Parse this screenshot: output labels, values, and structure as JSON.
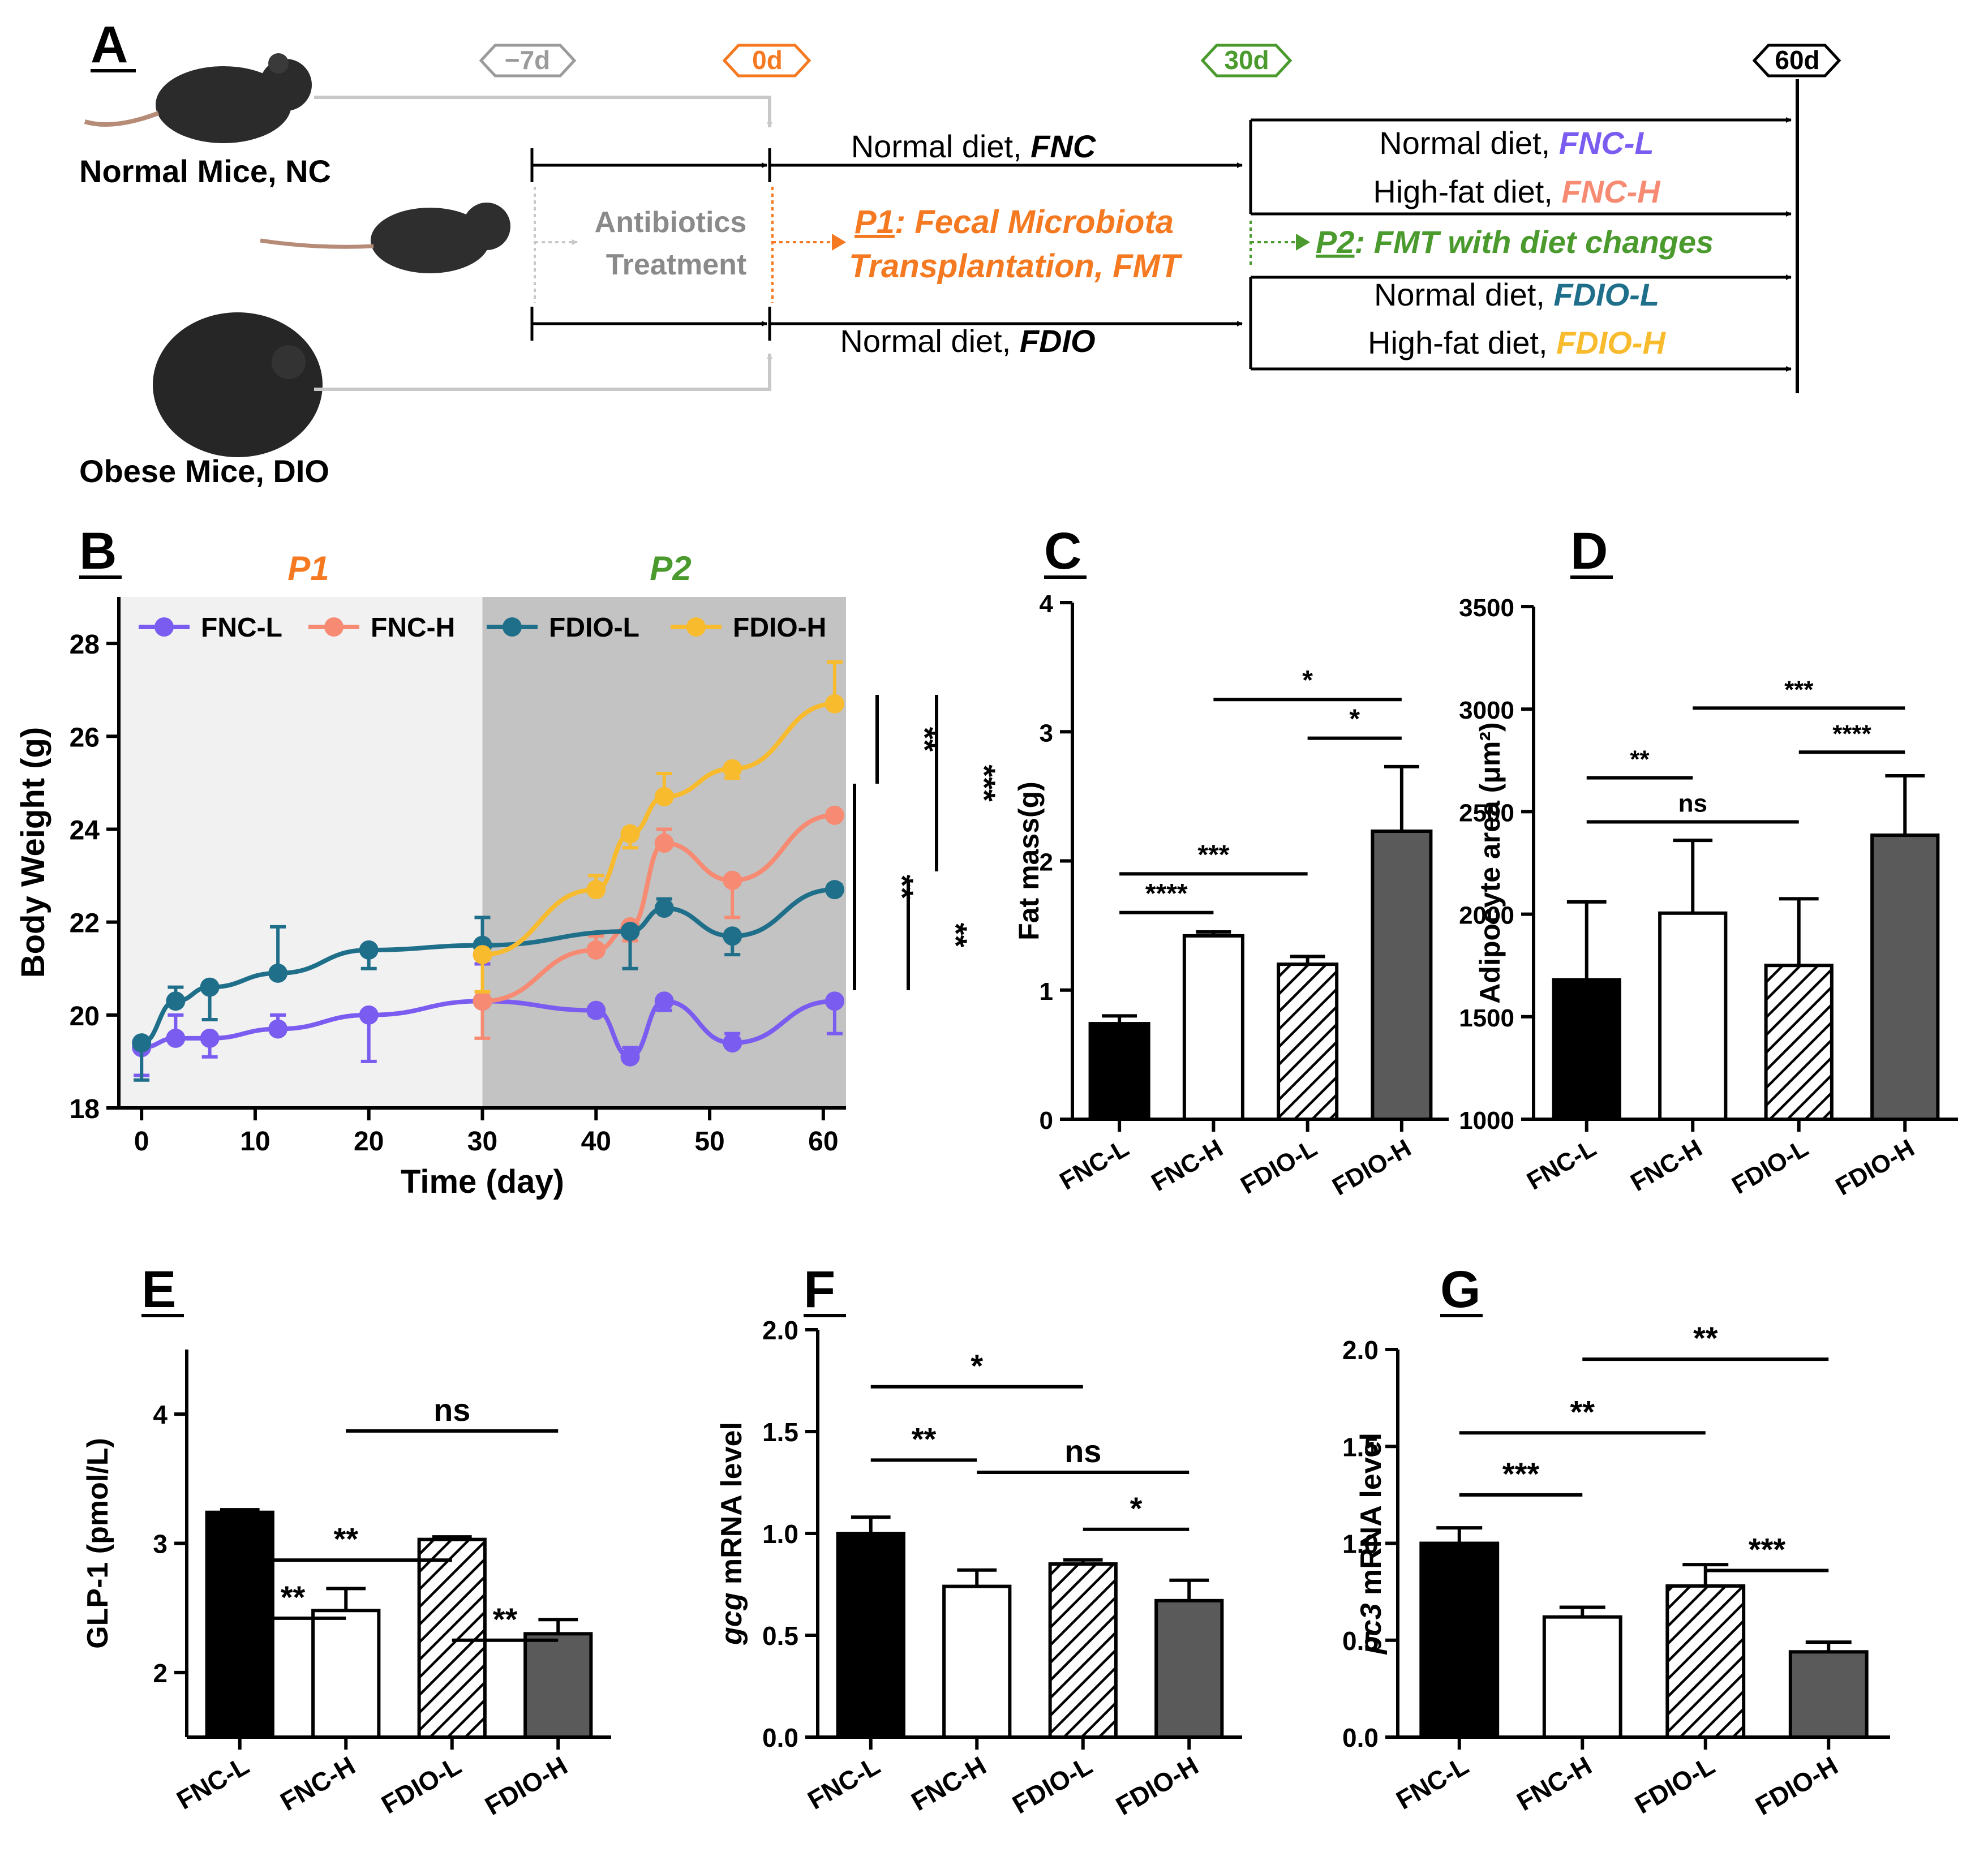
{
  "colors": {
    "fnc_l": "#7b5cf0",
    "fnc_h": "#f78a72",
    "fdio_l": "#1f6f8b",
    "fdio_h": "#f8bb2d",
    "p1": "#f47920",
    "p2": "#4a9a2e",
    "gray": "#9b9b9b",
    "dark_bar": "#5a5a5a"
  },
  "panelA": {
    "letter": "A",
    "normal_mice": "Normal Mice, NC",
    "obese_mice": "Obese Mice, DIO",
    "markers": [
      "−7d",
      "0d",
      "30d",
      "60d"
    ],
    "antibiotics_line1": "Antibiotics",
    "antibiotics_line2": "Treatment",
    "fnc_label": "Normal diet, ",
    "fnc_em": "FNC",
    "fdio_label": "Normal diet, ",
    "fdio_em": "FDIO",
    "p1_tag": "P1",
    "p1_line1": ": Fecal Microbiota",
    "p1_line2": "Transplantation, FMT",
    "p2_tag": "P2",
    "p2_text": ": FMT with diet changes",
    "groups": [
      {
        "label": "Normal diet, ",
        "name": "FNC-L"
      },
      {
        "label": "High-fat diet, ",
        "name": "FNC-H"
      },
      {
        "label": "Normal diet, ",
        "name": "FDIO-L"
      },
      {
        "label": "High-fat diet, ",
        "name": "FDIO-H"
      }
    ]
  },
  "chart_data": [
    {
      "panel": "B",
      "type": "line",
      "xlabel": "Time (day)",
      "ylabel": "Body Weight (g)",
      "xlim": [
        -2,
        62
      ],
      "ylim": [
        18,
        29
      ],
      "xticks": [
        0,
        10,
        20,
        30,
        40,
        50,
        60
      ],
      "yticks": [
        18,
        20,
        22,
        24,
        26,
        28
      ],
      "phase_labels": [
        "P1",
        "P2"
      ],
      "legend": [
        "FNC-L",
        "FNC-H",
        "FDIO-L",
        "FDIO-H"
      ],
      "series": [
        {
          "name": "FNC-L",
          "x": [
            0,
            3,
            6,
            12,
            20,
            30,
            40,
            43,
            46,
            52,
            61
          ],
          "y": [
            19.3,
            19.5,
            19.5,
            19.7,
            20.0,
            20.3,
            20.1,
            19.1,
            20.3,
            19.4,
            20.3
          ],
          "err": [
            0.6,
            0.5,
            0.4,
            0.3,
            1.0,
            0.8,
            0.1,
            0.2,
            0.2,
            0.2,
            0.7
          ]
        },
        {
          "name": "FNC-H",
          "x": [
            30,
            40,
            43,
            46,
            52,
            61
          ],
          "y": [
            20.3,
            21.4,
            21.9,
            23.7,
            22.9,
            24.3
          ],
          "err": [
            0.8,
            0.3,
            0.3,
            0.3,
            0.8,
            0.1
          ]
        },
        {
          "name": "FDIO-L",
          "x": [
            0,
            3,
            6,
            12,
            20,
            30,
            43,
            46,
            52,
            61
          ],
          "y": [
            19.4,
            20.3,
            20.6,
            20.9,
            21.4,
            21.5,
            21.8,
            22.3,
            21.7,
            22.7
          ],
          "err": [
            0.8,
            0.3,
            0.7,
            1.0,
            0.4,
            0.6,
            0.8,
            0.2,
            0.4,
            0.1
          ]
        },
        {
          "name": "FDIO-H",
          "x": [
            30,
            40,
            43,
            46,
            52,
            61
          ],
          "y": [
            21.3,
            22.7,
            23.9,
            24.7,
            25.3,
            26.7
          ],
          "err": [
            0.8,
            0.3,
            0.3,
            0.5,
            0.2,
            0.9
          ]
        }
      ],
      "sig_labels": [
        "**",
        "***",
        "**",
        "**"
      ]
    },
    {
      "panel": "C",
      "type": "bar",
      "categories": [
        "FNC-L",
        "FNC-H",
        "FDIO-L",
        "FDIO-H"
      ],
      "values": [
        0.74,
        1.42,
        1.2,
        2.23
      ],
      "errors": [
        0.06,
        0.03,
        0.06,
        0.5
      ],
      "ylabel": "Fat mass(g)",
      "ylim": [
        0,
        4
      ],
      "yticks": [
        0,
        1,
        2,
        3,
        4
      ],
      "sig_labels": [
        "****",
        "***",
        "*",
        "*"
      ]
    },
    {
      "panel": "D",
      "type": "bar",
      "categories": [
        "FNC-L",
        "FNC-H",
        "FDIO-L",
        "FDIO-H"
      ],
      "values": [
        1680,
        2005,
        1750,
        2385
      ],
      "errors": [
        380,
        355,
        325,
        290
      ],
      "ylabel": "Adipocyte area (μm²)",
      "ylim": [
        1000,
        3500
      ],
      "yticks": [
        1000,
        1500,
        2000,
        2500,
        3000,
        3500
      ],
      "sig_labels": [
        "**",
        "ns",
        "***",
        "****"
      ]
    },
    {
      "panel": "E",
      "type": "bar",
      "categories": [
        "FNC-L",
        "FNC-H",
        "FDIO-L",
        "FDIO-H"
      ],
      "values": [
        3.24,
        2.48,
        3.03,
        2.3
      ],
      "errors": [
        0.02,
        0.17,
        0.02,
        0.11
      ],
      "ylabel": "GLP-1 (pmol/L)",
      "ylim": [
        1.5,
        4.5
      ],
      "yticks": [
        2,
        3,
        4
      ],
      "sig_labels": [
        "**",
        "**",
        "ns",
        "**"
      ]
    },
    {
      "panel": "F",
      "type": "bar",
      "categories": [
        "FNC-L",
        "FNC-H",
        "FDIO-L",
        "FDIO-H"
      ],
      "values": [
        1.0,
        0.74,
        0.85,
        0.67
      ],
      "errors": [
        0.08,
        0.08,
        0.02,
        0.1
      ],
      "ylabel_italic": "gcg",
      "ylabel": " mRNA level",
      "ylim": [
        0,
        2.0
      ],
      "yticks": [
        "0.0",
        "0.5",
        "1.0",
        "1.5",
        "2.0"
      ],
      "sig_labels": [
        "*",
        "**",
        "ns",
        "*"
      ]
    },
    {
      "panel": "G",
      "type": "bar",
      "categories": [
        "FNC-L",
        "FNC-H",
        "FDIO-L",
        "FDIO-H"
      ],
      "values": [
        1.0,
        0.62,
        0.78,
        0.44
      ],
      "errors": [
        0.08,
        0.05,
        0.11,
        0.05
      ],
      "ylabel_italic": "pc3",
      "ylabel": " mRNA level",
      "ylim": [
        0,
        2.0
      ],
      "yticks": [
        "0.0",
        "0.5",
        "1.0",
        "1.5",
        "2.0"
      ],
      "sig_labels": [
        "**",
        "**",
        "***",
        "***"
      ]
    }
  ]
}
